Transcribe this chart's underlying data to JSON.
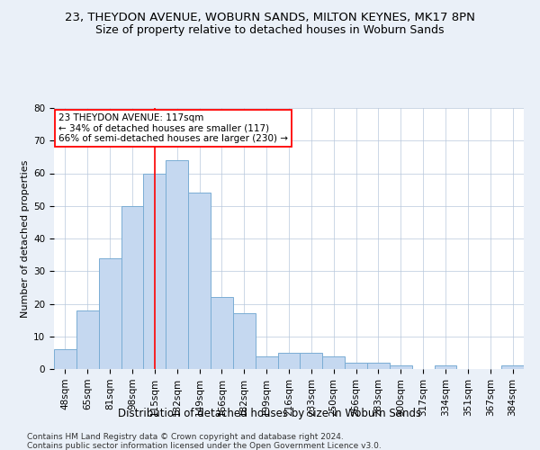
{
  "title": "23, THEYDON AVENUE, WOBURN SANDS, MILTON KEYNES, MK17 8PN",
  "subtitle": "Size of property relative to detached houses in Woburn Sands",
  "xlabel": "Distribution of detached houses by size in Woburn Sands",
  "ylabel": "Number of detached properties",
  "footer1": "Contains HM Land Registry data © Crown copyright and database right 2024.",
  "footer2": "Contains public sector information licensed under the Open Government Licence v3.0.",
  "categories": [
    "48sqm",
    "65sqm",
    "81sqm",
    "98sqm",
    "115sqm",
    "132sqm",
    "149sqm",
    "166sqm",
    "182sqm",
    "199sqm",
    "216sqm",
    "233sqm",
    "250sqm",
    "266sqm",
    "283sqm",
    "300sqm",
    "317sqm",
    "334sqm",
    "351sqm",
    "367sqm",
    "384sqm"
  ],
  "values": [
    6,
    18,
    34,
    50,
    60,
    64,
    54,
    22,
    17,
    4,
    5,
    5,
    4,
    2,
    2,
    1,
    0,
    1,
    0,
    0,
    1
  ],
  "bar_color": "#c5d8f0",
  "bar_edge_color": "#7aadd4",
  "ylim": [
    0,
    80
  ],
  "yticks": [
    0,
    10,
    20,
    30,
    40,
    50,
    60,
    70,
    80
  ],
  "vline_x": 4,
  "vline_color": "red",
  "annotation_text": "23 THEYDON AVENUE: 117sqm\n← 34% of detached houses are smaller (117)\n66% of semi-detached houses are larger (230) →",
  "annotation_box_color": "white",
  "annotation_box_edge_color": "red",
  "bg_color": "#eaf0f8",
  "plot_bg_color": "white",
  "grid_color": "#b8c8dc",
  "title_fontsize": 9.5,
  "subtitle_fontsize": 9,
  "xlabel_fontsize": 8.5,
  "ylabel_fontsize": 8,
  "tick_fontsize": 7.5,
  "annotation_fontsize": 7.5,
  "footer_fontsize": 6.5
}
